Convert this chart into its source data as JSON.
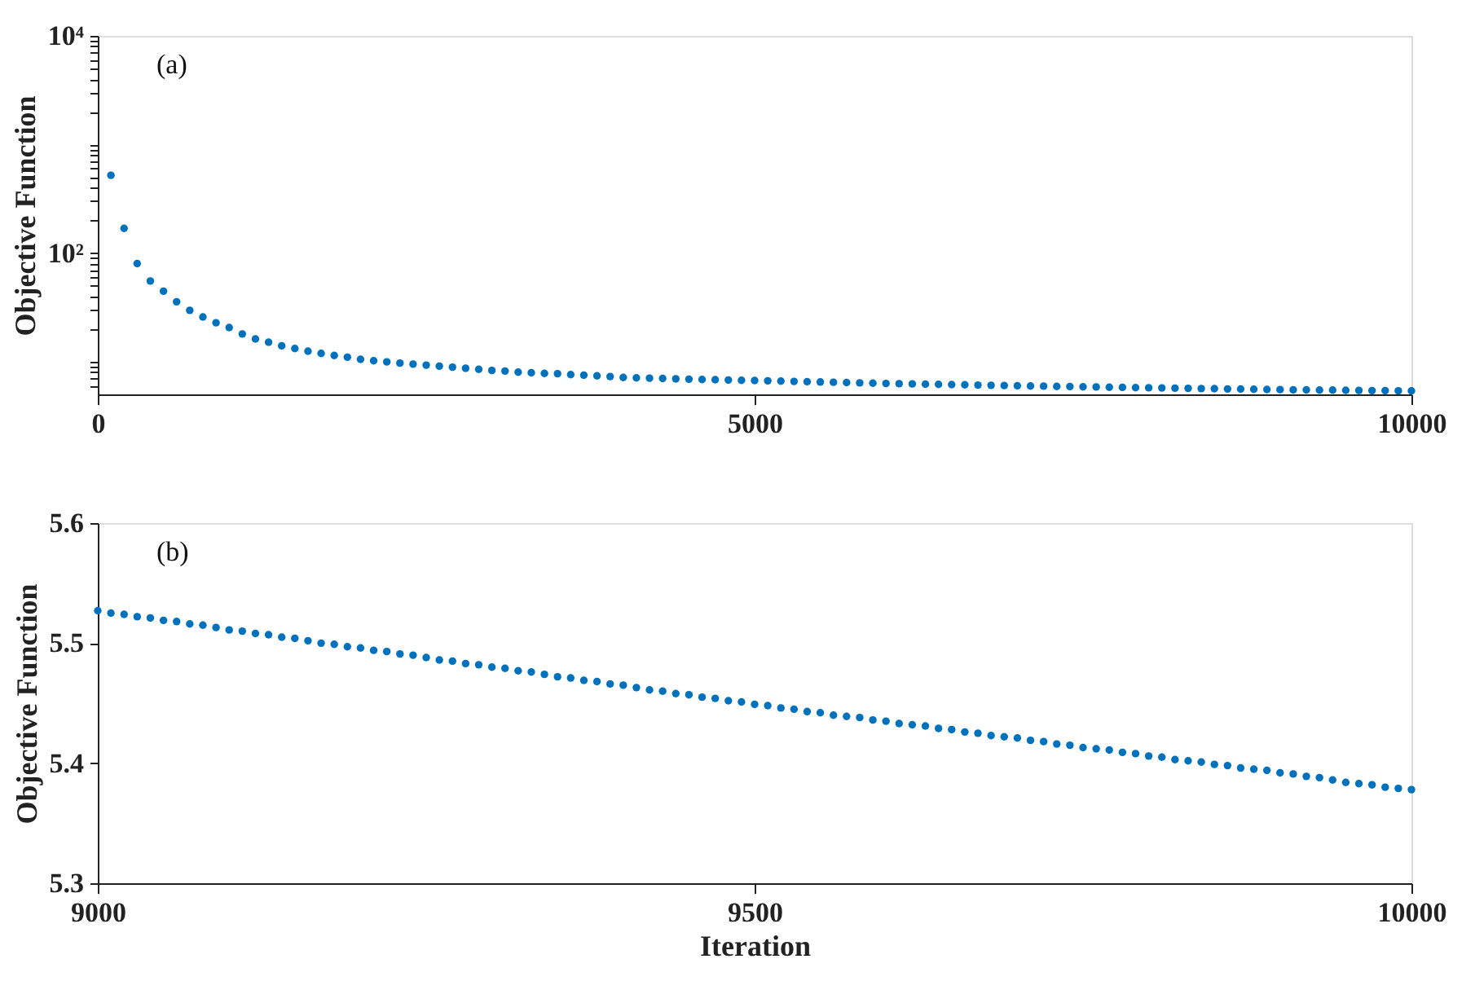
{
  "chart_data": [
    {
      "type": "scatter",
      "ylabel": "Objective Function",
      "annotations": [
        "(a)"
      ],
      "log": "y",
      "grid": false,
      "marker": "circle",
      "xlim": [
        0,
        10000
      ],
      "xticks": [
        0,
        5000,
        10000
      ],
      "ylim": [
        5,
        10000
      ],
      "yticks": [
        {
          "value": 6,
          "label": null
        },
        {
          "value": 7,
          "label": null
        },
        {
          "value": 8,
          "label": null
        },
        {
          "value": 9,
          "label": null
        },
        {
          "value": 10,
          "label": null
        },
        {
          "value": 20,
          "label": null
        },
        {
          "value": 30,
          "label": null
        },
        {
          "value": 40,
          "label": null
        },
        {
          "value": 50,
          "label": null
        },
        {
          "value": 60,
          "label": null
        },
        {
          "value": 70,
          "label": null
        },
        {
          "value": 80,
          "label": null
        },
        {
          "value": 90,
          "label": null
        },
        {
          "value": 100,
          "label": "10²"
        },
        {
          "value": 200,
          "label": null
        },
        {
          "value": 300,
          "label": null
        },
        {
          "value": 400,
          "label": null
        },
        {
          "value": 500,
          "label": null
        },
        {
          "value": 600,
          "label": null
        },
        {
          "value": 700,
          "label": null
        },
        {
          "value": 800,
          "label": null
        },
        {
          "value": 900,
          "label": null
        },
        {
          "value": 1000,
          "label": null
        },
        {
          "value": 2000,
          "label": null
        },
        {
          "value": 3000,
          "label": null
        },
        {
          "value": 4000,
          "label": null
        },
        {
          "value": 5000,
          "label": null
        },
        {
          "value": 6000,
          "label": null
        },
        {
          "value": 7000,
          "label": null
        },
        {
          "value": 8000,
          "label": null
        },
        {
          "value": 9000,
          "label": null
        },
        {
          "value": 10000,
          "label": "10⁴"
        }
      ],
      "x": [
        100,
        200,
        300,
        400,
        500,
        600,
        700,
        800,
        900,
        1000,
        1100,
        1200,
        1300,
        1400,
        1500,
        1600,
        1700,
        1800,
        1900,
        2000,
        2100,
        2200,
        2300,
        2400,
        2500,
        2600,
        2700,
        2800,
        2900,
        3000,
        3100,
        3200,
        3300,
        3400,
        3500,
        3600,
        3700,
        3800,
        3900,
        4000,
        4100,
        4200,
        4300,
        4400,
        4500,
        4600,
        4700,
        4800,
        4900,
        5000,
        5100,
        5200,
        5300,
        5400,
        5500,
        5600,
        5700,
        5800,
        5900,
        6000,
        6100,
        6200,
        6300,
        6400,
        6500,
        6600,
        6700,
        6800,
        6900,
        7000,
        7100,
        7200,
        7300,
        7400,
        7500,
        7600,
        7700,
        7800,
        7900,
        8000,
        8100,
        8200,
        8300,
        8400,
        8500,
        8600,
        8700,
        8800,
        8900,
        9000,
        9100,
        9200,
        9300,
        9400,
        9500,
        9600,
        9700,
        9800,
        9900,
        10000
      ],
      "series": [
        {
          "color": "#0072bd",
          "values": [
            520,
            169,
            80,
            55.3,
            44.6,
            35.6,
            29.7,
            25.8,
            22.8,
            20.6,
            18.0,
            16.2,
            15.1,
            14.0,
            13.2,
            12.5,
            11.9,
            11.4,
            11.0,
            10.5,
            10.2,
            9.95,
            9.7,
            9.5,
            9.3,
            9.1,
            8.9,
            8.7,
            8.5,
            8.3,
            8.2,
            8.0,
            7.9,
            7.8,
            7.75,
            7.6,
            7.5,
            7.4,
            7.3,
            7.15,
            7.1,
            7.05,
            7.0,
            6.95,
            6.9,
            6.86,
            6.82,
            6.78,
            6.74,
            6.7,
            6.66,
            6.62,
            6.58,
            6.54,
            6.5,
            6.46,
            6.42,
            6.38,
            6.34,
            6.3,
            6.27,
            6.24,
            6.21,
            6.18,
            6.15,
            6.12,
            6.09,
            6.06,
            6.03,
            6.0,
            5.97,
            5.95,
            5.92,
            5.9,
            5.87,
            5.85,
            5.82,
            5.8,
            5.77,
            5.75,
            5.73,
            5.7,
            5.68,
            5.66,
            5.64,
            5.61,
            5.59,
            5.57,
            5.55,
            5.53,
            5.51,
            5.5,
            5.48,
            5.47,
            5.45,
            5.44,
            5.42,
            5.41,
            5.39,
            5.38
          ]
        }
      ]
    },
    {
      "type": "scatter",
      "xlabel": "Iteration",
      "ylabel": "Objective Function",
      "annotations": [
        "(b)"
      ],
      "grid": false,
      "marker": "circle",
      "xlim": [
        9000,
        10000
      ],
      "xticks": [
        9000,
        9500,
        10000
      ],
      "ylim": [
        5.3,
        5.6
      ],
      "yticks": [
        5.3,
        5.4,
        5.5,
        5.6
      ],
      "x": [
        9000,
        9010,
        9020,
        9030,
        9040,
        9050,
        9060,
        9070,
        9080,
        9090,
        9100,
        9110,
        9120,
        9130,
        9140,
        9150,
        9160,
        9170,
        9180,
        9190,
        9200,
        9210,
        9220,
        9230,
        9240,
        9250,
        9260,
        9270,
        9280,
        9290,
        9300,
        9310,
        9320,
        9330,
        9340,
        9350,
        9360,
        9370,
        9380,
        9390,
        9400,
        9410,
        9420,
        9430,
        9440,
        9450,
        9460,
        9470,
        9480,
        9490,
        9500,
        9510,
        9520,
        9530,
        9540,
        9550,
        9560,
        9570,
        9580,
        9590,
        9600,
        9610,
        9620,
        9630,
        9640,
        9650,
        9660,
        9670,
        9680,
        9690,
        9700,
        9710,
        9720,
        9730,
        9740,
        9750,
        9760,
        9770,
        9780,
        9790,
        9800,
        9810,
        9820,
        9830,
        9840,
        9850,
        9860,
        9870,
        9880,
        9890,
        9900,
        9910,
        9920,
        9930,
        9940,
        9950,
        9960,
        9970,
        9980,
        9990,
        10000
      ],
      "series": [
        {
          "color": "#0072bd",
          "values": [
            5.527,
            5.525,
            5.524,
            5.522,
            5.521,
            5.519,
            5.518,
            5.516,
            5.515,
            5.513,
            5.511,
            5.51,
            5.508,
            5.507,
            5.505,
            5.504,
            5.502,
            5.5,
            5.499,
            5.497,
            5.496,
            5.494,
            5.493,
            5.491,
            5.49,
            5.488,
            5.486,
            5.485,
            5.483,
            5.482,
            5.48,
            5.479,
            5.477,
            5.476,
            5.474,
            5.472,
            5.471,
            5.469,
            5.468,
            5.466,
            5.465,
            5.463,
            5.461,
            5.46,
            5.458,
            5.457,
            5.455,
            5.454,
            5.452,
            5.451,
            5.449,
            5.448,
            5.446,
            5.445,
            5.443,
            5.442,
            5.44,
            5.439,
            5.438,
            5.436,
            5.435,
            5.433,
            5.432,
            5.431,
            5.429,
            5.428,
            5.426,
            5.425,
            5.423,
            5.422,
            5.421,
            5.419,
            5.418,
            5.416,
            5.415,
            5.413,
            5.412,
            5.411,
            5.409,
            5.408,
            5.406,
            5.405,
            5.403,
            5.402,
            5.401,
            5.399,
            5.398,
            5.396,
            5.395,
            5.394,
            5.392,
            5.391,
            5.389,
            5.388,
            5.386,
            5.384,
            5.383,
            5.382,
            5.38,
            5.379,
            5.378
          ]
        }
      ]
    }
  ]
}
